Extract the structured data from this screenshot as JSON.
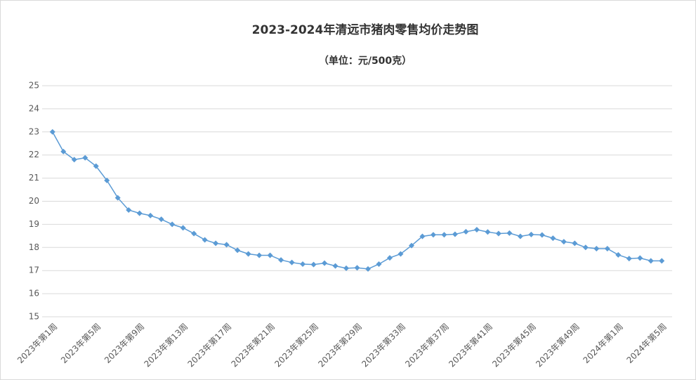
{
  "chart_data": {
    "type": "line",
    "title": "2023-2024年清远市猪肉零售均价走势图",
    "subtitle": "（单位：元/500克）",
    "categories": [
      "2023年第1周",
      null,
      null,
      null,
      "2023年第5周",
      null,
      null,
      null,
      "2023年第9周",
      null,
      null,
      null,
      "2023年第13周",
      null,
      null,
      null,
      "2023年第17周",
      null,
      null,
      null,
      "2023年第21周",
      null,
      null,
      null,
      "2023年第25周",
      null,
      null,
      null,
      "2023年第29周",
      null,
      null,
      null,
      "2023年第33周",
      null,
      null,
      null,
      "2023年第37周",
      null,
      null,
      null,
      "2023年第41周",
      null,
      null,
      null,
      "2023年第45周",
      null,
      null,
      null,
      "2023年第49周",
      null,
      null,
      null,
      "2024年第1周",
      null,
      null,
      null,
      "2024年第5周"
    ],
    "series": [
      {
        "color": "#5b9bd5",
        "values": [
          23.0,
          22.15,
          21.8,
          21.88,
          21.52,
          20.9,
          20.15,
          19.62,
          19.48,
          19.38,
          19.22,
          19.0,
          18.85,
          18.6,
          18.33,
          18.18,
          18.12,
          17.88,
          17.72,
          17.66,
          17.66,
          17.46,
          17.35,
          17.28,
          17.26,
          17.32,
          17.2,
          17.1,
          17.12,
          17.07,
          17.28,
          17.55,
          17.72,
          18.08,
          18.48,
          18.55,
          18.55,
          18.57,
          18.68,
          18.77,
          18.67,
          18.6,
          18.62,
          18.48,
          18.56,
          18.54,
          18.4,
          18.25,
          18.18,
          18.0,
          17.95,
          17.95,
          17.68,
          17.52,
          17.54,
          17.42,
          17.42
        ]
      }
    ],
    "ylim": [
      15,
      25
    ],
    "yticks": [
      15,
      16,
      17,
      18,
      19,
      20,
      21,
      22,
      23,
      24,
      25
    ],
    "grid": true
  }
}
